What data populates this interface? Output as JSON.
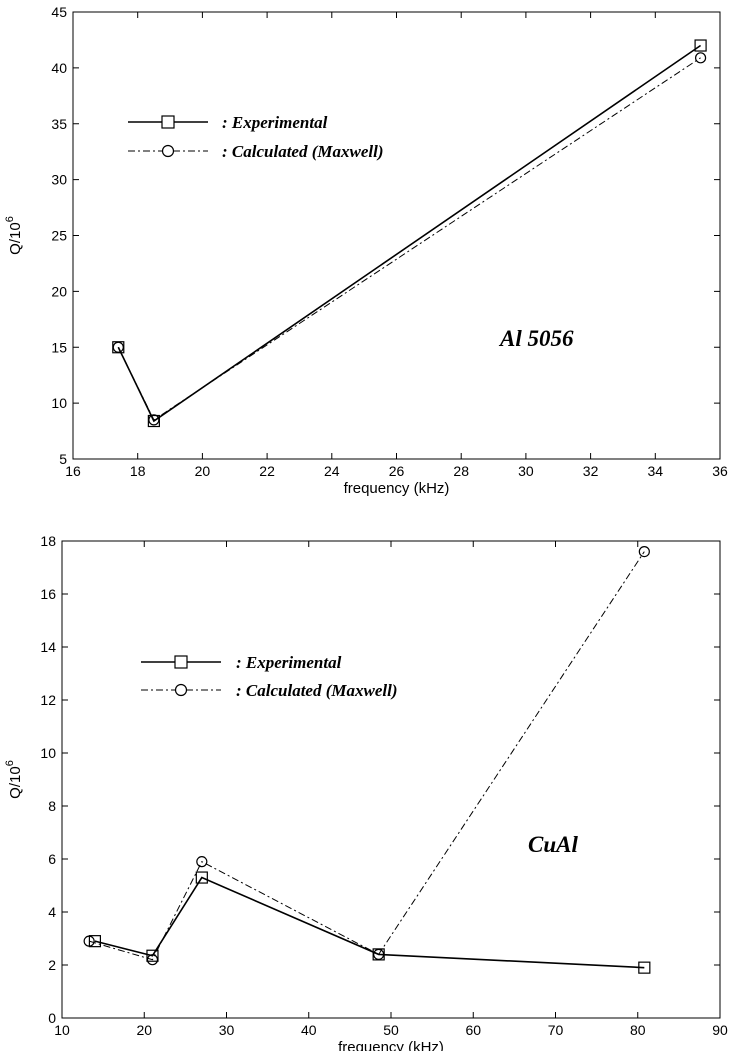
{
  "chart_data": [
    {
      "type": "line",
      "title": "",
      "annotation": "Al 5056",
      "xlabel": "frequency  (kHz)",
      "ylabel_main": "Q/10",
      "ylabel_sup": "6",
      "xlim": [
        16,
        36
      ],
      "ylim": [
        5,
        45
      ],
      "xticks": [
        16,
        18,
        20,
        22,
        24,
        26,
        28,
        30,
        32,
        34,
        36
      ],
      "yticks": [
        5,
        10,
        15,
        20,
        25,
        30,
        35,
        40,
        45
      ],
      "grid": false,
      "legend_position": "upper-left",
      "series": [
        {
          "name": ": Experimental",
          "marker": "square",
          "line": "solid",
          "x": [
            17.4,
            18.5,
            35.4
          ],
          "y": [
            15.0,
            8.4,
            42.0
          ]
        },
        {
          "name": ": Calculated  (Maxwell)",
          "marker": "circle",
          "line": "dash-dot",
          "x": [
            17.4,
            18.5,
            35.4
          ],
          "y": [
            15.0,
            8.5,
            40.9
          ]
        }
      ]
    },
    {
      "type": "line",
      "title": "",
      "annotation": "CuAl",
      "xlabel": "frequency  (kHz)",
      "ylabel_main": "Q/10",
      "ylabel_sup": "6",
      "xlim": [
        10,
        90
      ],
      "ylim": [
        0,
        18
      ],
      "xticks": [
        10,
        20,
        30,
        40,
        50,
        60,
        70,
        80,
        90
      ],
      "yticks": [
        0,
        2,
        4,
        6,
        8,
        10,
        12,
        14,
        16,
        18
      ],
      "grid": false,
      "legend_position": "upper-left",
      "series": [
        {
          "name": ": Experimental",
          "marker": "square",
          "line": "solid",
          "x": [
            14.0,
            21.0,
            27.0,
            48.5,
            80.8
          ],
          "y": [
            2.9,
            2.35,
            5.3,
            2.4,
            1.9
          ]
        },
        {
          "name": ": Calculated  (Maxwell)",
          "marker": "circle",
          "line": "dash-dot",
          "x": [
            13.3,
            21.0,
            27.0,
            48.5,
            80.8
          ],
          "y": [
            2.9,
            2.2,
            5.9,
            2.4,
            17.6
          ]
        }
      ]
    }
  ]
}
